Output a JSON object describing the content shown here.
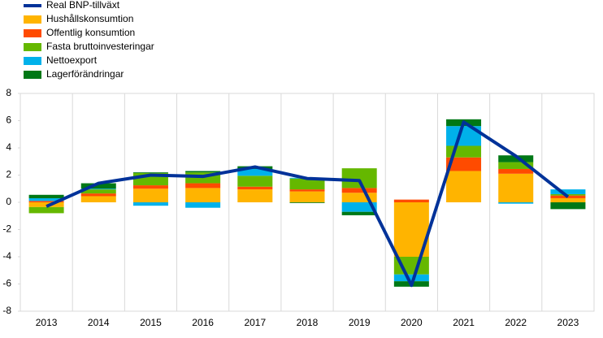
{
  "chart_data": {
    "type": "bar",
    "categories": [
      "2013",
      "2014",
      "2015",
      "2016",
      "2017",
      "2018",
      "2019",
      "2020",
      "2021",
      "2022",
      "2023"
    ],
    "series": [
      {
        "name": "Real BNP-tillväxt",
        "color": "#003299",
        "type": "line",
        "values": [
          -0.3,
          1.4,
          2.0,
          1.9,
          2.6,
          1.75,
          1.6,
          -6.1,
          5.9,
          3.4,
          0.4
        ]
      },
      {
        "name": "Hushållskonsumtion",
        "color": "#ffb400",
        "values": [
          -0.35,
          0.45,
          1.0,
          1.05,
          0.95,
          0.8,
          0.7,
          -4.0,
          2.3,
          2.1,
          0.3
        ]
      },
      {
        "name": "Offentlig konsumtion",
        "color": "#ff4b00",
        "values": [
          0.1,
          0.2,
          0.25,
          0.35,
          0.2,
          0.15,
          0.35,
          0.2,
          1.0,
          0.35,
          0.2
        ]
      },
      {
        "name": "Fasta bruttoinvesteringar",
        "color": "#65b800",
        "values": [
          -0.45,
          0.3,
          0.9,
          0.8,
          0.8,
          0.8,
          1.45,
          -1.3,
          0.85,
          0.5,
          0.1
        ]
      },
      {
        "name": "Nettoexport",
        "color": "#00b1ea",
        "values": [
          0.2,
          0.05,
          -0.25,
          -0.4,
          0.5,
          0.05,
          -0.7,
          -0.5,
          1.45,
          -0.1,
          0.35
        ]
      },
      {
        "name": "Lagerförändringar",
        "color": "#007816",
        "values": [
          0.25,
          0.4,
          0.05,
          0.1,
          0.2,
          -0.05,
          -0.25,
          -0.4,
          0.5,
          0.5,
          -0.5
        ]
      }
    ],
    "ylim": [
      -8,
      8
    ],
    "yticks": [
      -8,
      -6,
      -4,
      -2,
      0,
      2,
      4,
      6,
      8
    ]
  }
}
